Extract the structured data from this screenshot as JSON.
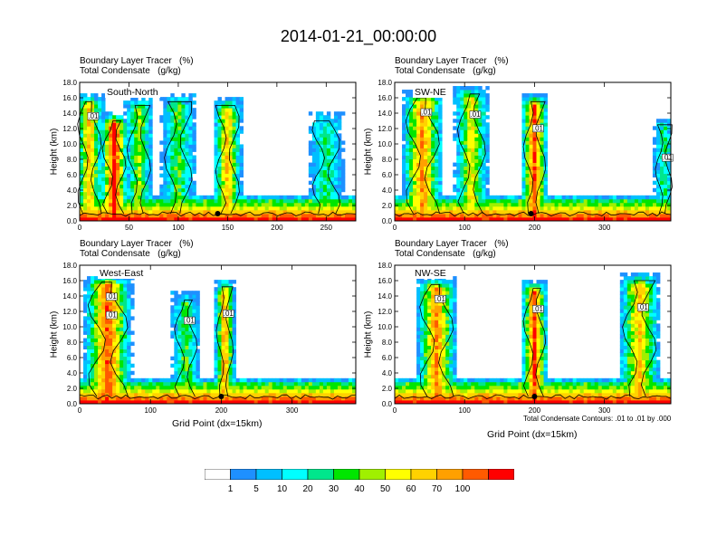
{
  "title": "2014-01-21_00:00:00",
  "panel_title_line1": "Boundary Layer Tracer   (%)",
  "panel_title_line2": "Total Condensate   (g/kg)",
  "ylabel": "Height (km)",
  "xlabel": "Grid Point (dx=15km)",
  "contour_note": "Total Condensate Contours: .01 to .01 by .000",
  "colors": [
    "#ffffff",
    "#1e90ff",
    "#00bfff",
    "#00ffff",
    "#00e68c",
    "#00e600",
    "#a0f000",
    "#ffff00",
    "#ffd200",
    "#ffa000",
    "#ff5a00",
    "#ff0000"
  ],
  "colorbar": {
    "labels": [
      "1",
      "5",
      "10",
      "20",
      "30",
      "40",
      "50",
      "60",
      "70",
      "100"
    ]
  },
  "chart_data": [
    {
      "type": "heatmap",
      "name": "South-North",
      "xlim": [
        0,
        280
      ],
      "xticks": [
        "0",
        "50",
        "100",
        "150",
        "200",
        "250"
      ],
      "ylim": [
        0,
        18
      ],
      "yticks": [
        "0.0",
        "2.0",
        "4.0",
        "6.0",
        "8.0",
        "10.0",
        "12.0",
        "14.0",
        "16.0",
        "18.0"
      ],
      "contour_labels": [
        ".01"
      ],
      "marker_x": 140,
      "columns": [
        {
          "x": 10,
          "w": 30,
          "top": 16.5,
          "peak": 8
        },
        {
          "x": 35,
          "w": 30,
          "top": 14.0,
          "peak": 11
        },
        {
          "x": 60,
          "w": 30,
          "top": 16.0,
          "peak": 6
        },
        {
          "x": 100,
          "w": 35,
          "top": 16.5,
          "peak": 5
        },
        {
          "x": 150,
          "w": 30,
          "top": 16.0,
          "peak": 8
        },
        {
          "x": 250,
          "w": 35,
          "top": 14.0,
          "peak": 4
        }
      ]
    },
    {
      "type": "heatmap",
      "name": "SW-NE",
      "xlim": [
        0,
        395
      ],
      "xticks": [
        "0",
        "100",
        "200",
        "300"
      ],
      "ylim": [
        0,
        18
      ],
      "yticks": [
        "0.0",
        "2.0",
        "4.0",
        "6.0",
        "8.0",
        "10.0",
        "12.0",
        "14.0",
        "16.0",
        "18.0"
      ],
      "contour_labels": [
        ".01",
        ".01",
        ".01",
        ".01"
      ],
      "marker_x": 195,
      "columns": [
        {
          "x": 40,
          "w": 60,
          "top": 17.0,
          "peak": 9
        },
        {
          "x": 110,
          "w": 50,
          "top": 17.5,
          "peak": 7
        },
        {
          "x": 200,
          "w": 40,
          "top": 16.5,
          "peak": 10
        },
        {
          "x": 385,
          "w": 30,
          "top": 13.5,
          "peak": 4
        }
      ]
    },
    {
      "type": "heatmap",
      "name": "West-East",
      "xlim": [
        0,
        390
      ],
      "xticks": [
        "0",
        "100",
        "200",
        "300"
      ],
      "ylim": [
        0,
        18
      ],
      "yticks": [
        "0.0",
        "2.0",
        "4.0",
        "6.0",
        "8.0",
        "10.0",
        "12.0",
        "14.0",
        "16.0",
        "18.0"
      ],
      "contour_labels": [
        ".01",
        ".01",
        ".01",
        ".01"
      ],
      "marker_x": 200,
      "columns": [
        {
          "x": 40,
          "w": 70,
          "top": 16.8,
          "peak": 10
        },
        {
          "x": 150,
          "w": 40,
          "top": 14.5,
          "peak": 5
        },
        {
          "x": 205,
          "w": 30,
          "top": 16.2,
          "peak": 9
        }
      ]
    },
    {
      "type": "heatmap",
      "name": "NW-SE",
      "xlim": [
        0,
        395
      ],
      "xticks": [
        "0",
        "100",
        "200",
        "300"
      ],
      "ylim": [
        0,
        18
      ],
      "yticks": [
        "0.0",
        "2.0",
        "4.0",
        "6.0",
        "8.0",
        "10.0",
        "12.0",
        "14.0",
        "16.0",
        "18.0"
      ],
      "contour_labels": [
        ".01",
        ".01",
        ".01"
      ],
      "marker_x": 200,
      "columns": [
        {
          "x": 60,
          "w": 60,
          "top": 16.5,
          "peak": 9
        },
        {
          "x": 200,
          "w": 40,
          "top": 16.0,
          "peak": 10
        },
        {
          "x": 350,
          "w": 60,
          "top": 17.0,
          "peak": 8
        }
      ]
    }
  ]
}
